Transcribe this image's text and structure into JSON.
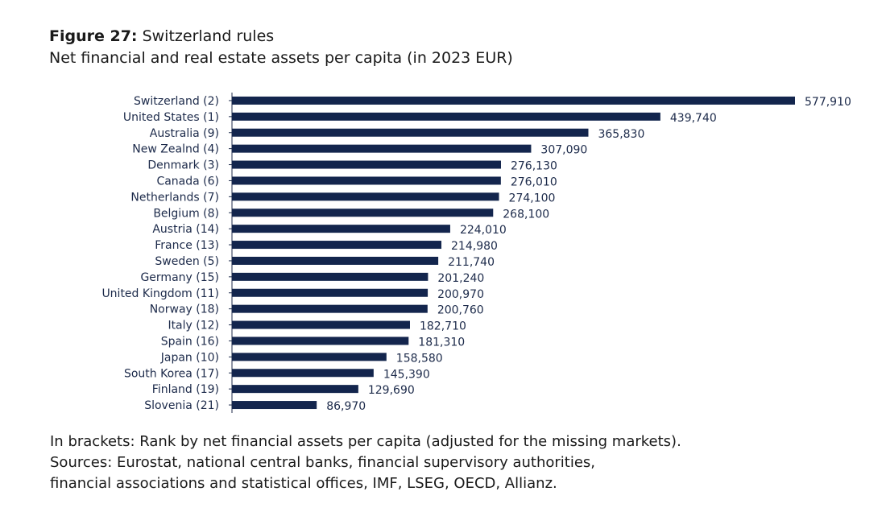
{
  "figure": {
    "label": "Figure 27:",
    "title": "Switzerland rules",
    "subtitle": "Net financial and real estate assets per capita (in 2023 EUR)"
  },
  "colors": {
    "bar": "#13254d",
    "axis": "#1c2a4a",
    "text": "#1c2a4a"
  },
  "chart_data": {
    "type": "bar",
    "orientation": "horizontal",
    "title": "Switzerland rules",
    "subtitle": "Net financial and real estate assets per capita (in 2023 EUR)",
    "xlabel": "",
    "ylabel": "",
    "xlim": [
      0,
      600000
    ],
    "grid": false,
    "categories": [
      "Switzerland (2)",
      "United States (1)",
      "Australia (9)",
      "New Zealnd (4)",
      "Denmark (3)",
      "Canada (6)",
      "Netherlands (7)",
      "Belgium (8)",
      "Austria (14)",
      "France (13)",
      "Sweden (5)",
      "Germany (15)",
      "United Kingdom (11)",
      "Norway (18)",
      "Italy (12)",
      "Spain (16)",
      "Japan (10)",
      "South Korea (17)",
      "Finland (19)",
      "Slovenia (21)"
    ],
    "values": [
      577910,
      439740,
      365830,
      307090,
      276130,
      276010,
      274100,
      268100,
      224010,
      214980,
      211740,
      201240,
      200970,
      200760,
      182710,
      181310,
      158580,
      145390,
      129690,
      86970
    ],
    "value_labels": [
      "577,910",
      "439,740",
      "365,830",
      "307,090",
      "276,130",
      "276,010",
      "274,100",
      "268,100",
      "224,010",
      "214,980",
      "211,740",
      "201,240",
      "200,970",
      "200,760",
      "182,710",
      "181,310",
      "158,580",
      "145,390",
      "129,690",
      "86,970"
    ]
  },
  "footnotes": {
    "line1": "In brackets: Rank by net financial assets per capita (adjusted for the missing markets).",
    "line2": "Sources: Eurostat, national central banks, financial supervisory authorities,",
    "line3": "financial associations and statistical offices, IMF, LSEG, OECD, Allianz."
  }
}
